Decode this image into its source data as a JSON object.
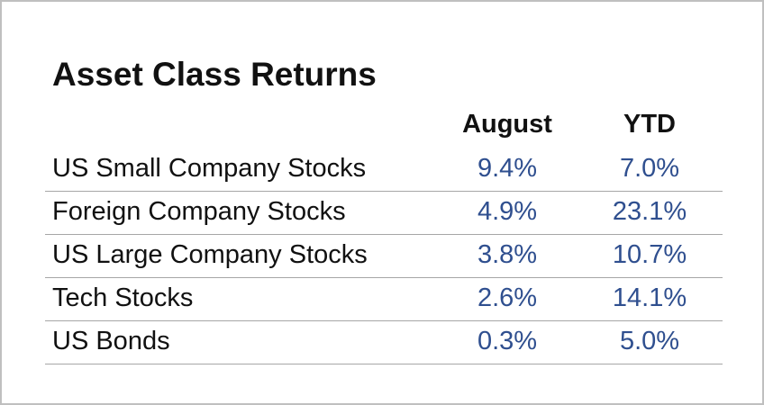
{
  "chart_data": {
    "type": "table",
    "title": "Asset Class Returns",
    "columns": [
      "August",
      "YTD"
    ],
    "rows": [
      {
        "label": "US Small Company Stocks",
        "august": "9.4%",
        "ytd": "7.0%"
      },
      {
        "label": "Foreign Company Stocks",
        "august": "4.9%",
        "ytd": "23.1%"
      },
      {
        "label": "US Large Company Stocks",
        "august": "3.8%",
        "ytd": "10.7%"
      },
      {
        "label": "Tech Stocks",
        "august": "2.6%",
        "ytd": "14.1%"
      },
      {
        "label": "US Bonds",
        "august": "0.3%",
        "ytd": "5.0%"
      }
    ],
    "colors": {
      "label_text": "#111111",
      "value_text": "#2f4f8f",
      "rule": "#a6a6a6"
    }
  }
}
